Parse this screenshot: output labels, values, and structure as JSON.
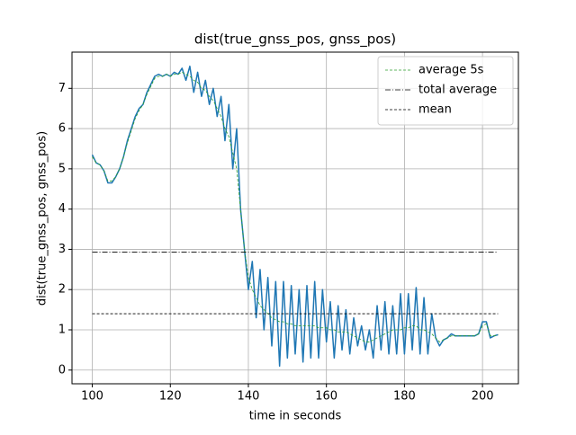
{
  "chart_data": {
    "type": "line",
    "title": "dist(true_gnss_pos, gnss_pos)",
    "xlabel": "time in seconds",
    "ylabel": "dist(true_gnss_pos, gnss_pos)",
    "x": [
      100,
      101,
      102,
      103,
      104,
      105,
      106,
      107,
      108,
      109,
      110,
      111,
      112,
      113,
      114,
      115,
      116,
      117,
      118,
      119,
      120,
      121,
      122,
      123,
      124,
      125,
      126,
      127,
      128,
      129,
      130,
      131,
      132,
      133,
      134,
      135,
      136,
      137,
      138,
      139,
      140,
      141,
      142,
      143,
      144,
      145,
      146,
      147,
      148,
      149,
      150,
      151,
      152,
      153,
      154,
      155,
      156,
      157,
      158,
      159,
      160,
      161,
      162,
      163,
      164,
      165,
      166,
      167,
      168,
      169,
      170,
      171,
      172,
      173,
      174,
      175,
      176,
      177,
      178,
      179,
      180,
      181,
      182,
      183,
      184,
      185,
      186,
      187,
      188,
      189,
      190,
      191,
      192,
      193,
      194,
      195,
      196,
      197,
      198,
      199,
      200,
      201,
      202,
      203,
      204
    ],
    "series": [
      {
        "color": "#1f77b4",
        "values": [
          5.35,
          5.15,
          5.1,
          4.95,
          4.65,
          4.65,
          4.8,
          5.0,
          5.3,
          5.7,
          6.0,
          6.3,
          6.5,
          6.6,
          6.9,
          7.1,
          7.3,
          7.35,
          7.3,
          7.35,
          7.3,
          7.4,
          7.35,
          7.5,
          7.2,
          7.55,
          6.9,
          7.4,
          6.8,
          7.2,
          6.6,
          7.0,
          6.3,
          6.8,
          5.7,
          6.6,
          5.0,
          6.0,
          4.0,
          3.0,
          2.0,
          2.7,
          1.3,
          2.5,
          1.0,
          2.3,
          0.6,
          2.2,
          0.1,
          2.2,
          0.3,
          2.1,
          0.4,
          2.0,
          0.2,
          2.1,
          0.3,
          2.2,
          0.3,
          2.0,
          0.7,
          1.7,
          0.3,
          1.6,
          0.5,
          1.5,
          0.4,
          1.3,
          0.6,
          1.1,
          0.5,
          1.0,
          0.3,
          1.6,
          0.5,
          1.7,
          0.4,
          1.6,
          0.4,
          1.9,
          0.4,
          1.9,
          0.5,
          2.05,
          0.4,
          1.8,
          0.4,
          1.4,
          0.8,
          0.6,
          0.75,
          0.8,
          0.9,
          0.85,
          0.85,
          0.85,
          0.85,
          0.85,
          0.85,
          0.9,
          1.2,
          1.2,
          0.8,
          0.85,
          0.88
        ]
      },
      {
        "name": "average 5s",
        "color": "#2ca02c",
        "dash": "3,2",
        "values": [
          5.3,
          5.15,
          5.1,
          4.95,
          4.7,
          4.7,
          4.8,
          5.0,
          5.3,
          5.65,
          5.95,
          6.25,
          6.45,
          6.6,
          6.85,
          7.05,
          7.25,
          7.3,
          7.3,
          7.35,
          7.3,
          7.35,
          7.35,
          7.4,
          7.35,
          7.3,
          7.2,
          7.15,
          7.0,
          6.95,
          6.8,
          6.7,
          6.5,
          6.3,
          6.0,
          5.8,
          5.4,
          5.0,
          4.0,
          3.0,
          2.3,
          2.0,
          1.8,
          1.6,
          1.5,
          1.4,
          1.3,
          1.25,
          1.2,
          1.2,
          1.15,
          1.15,
          1.1,
          1.1,
          1.1,
          1.1,
          1.1,
          1.1,
          1.05,
          1.05,
          1.05,
          1.0,
          1.0,
          0.95,
          0.95,
          0.95,
          0.9,
          0.85,
          0.8,
          0.75,
          0.7,
          0.7,
          0.75,
          0.8,
          0.85,
          0.9,
          0.95,
          1.0,
          1.0,
          1.0,
          1.05,
          1.05,
          1.1,
          1.1,
          1.0,
          1.0,
          0.95,
          0.9,
          0.8,
          0.7,
          0.75,
          0.8,
          0.85,
          0.85,
          0.85,
          0.85,
          0.85,
          0.85,
          0.85,
          0.9,
          1.1,
          1.15,
          0.85,
          0.85,
          0.88
        ]
      }
    ],
    "hlines": [
      {
        "name": "total average",
        "value": 2.93,
        "color": "#000000",
        "dash": "6,2,1,2"
      },
      {
        "name": "mean",
        "value": 1.4,
        "color": "#000000",
        "dash": "3,2"
      }
    ],
    "xlim": [
      94.8,
      209.2
    ],
    "xticks": [
      100,
      120,
      140,
      160,
      180,
      200
    ],
    "ylim": [
      -0.34,
      7.9
    ],
    "yticks": [
      0,
      1,
      2,
      3,
      4,
      5,
      6,
      7
    ],
    "grid": true,
    "legend": "upper right"
  }
}
